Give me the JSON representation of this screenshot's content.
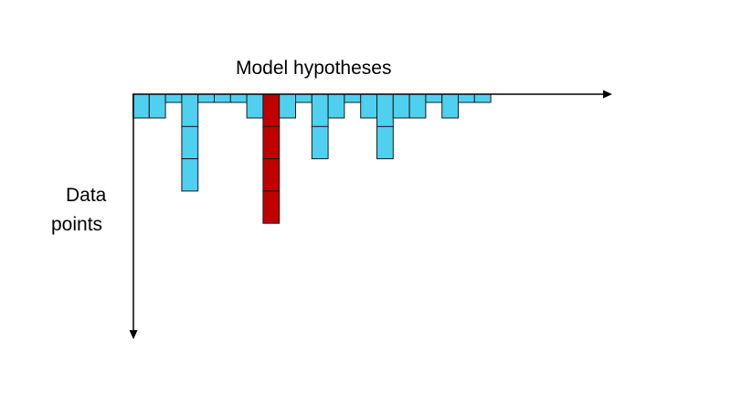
{
  "labels": {
    "x_axis": "Model hypotheses",
    "y_axis_line1": "Data",
    "y_axis_line2": "points"
  },
  "colors": {
    "normal_fill": "#4fd0ef",
    "highlight_fill": "#c00000",
    "stroke": "#1a1a1a",
    "axis": "#000000"
  },
  "columns": [
    {
      "count": 1,
      "highlight": false
    },
    {
      "count": 1,
      "highlight": false
    },
    {
      "count": 0,
      "highlight": false
    },
    {
      "count": 3,
      "highlight": false
    },
    {
      "count": 0,
      "highlight": false
    },
    {
      "count": 0,
      "highlight": false
    },
    {
      "count": 0,
      "highlight": false
    },
    {
      "count": 1,
      "highlight": false
    },
    {
      "count": 4,
      "highlight": true
    },
    {
      "count": 1,
      "highlight": false
    },
    {
      "count": 0,
      "highlight": false
    },
    {
      "count": 2,
      "highlight": false
    },
    {
      "count": 1,
      "highlight": false
    },
    {
      "count": 0,
      "highlight": false
    },
    {
      "count": 1,
      "highlight": false
    },
    {
      "count": 2,
      "highlight": false
    },
    {
      "count": 1,
      "highlight": false
    },
    {
      "count": 1,
      "highlight": false
    },
    {
      "count": 0,
      "highlight": false
    },
    {
      "count": 1,
      "highlight": false
    },
    {
      "count": 0,
      "highlight": false
    },
    {
      "count": 0,
      "highlight": false
    }
  ]
}
